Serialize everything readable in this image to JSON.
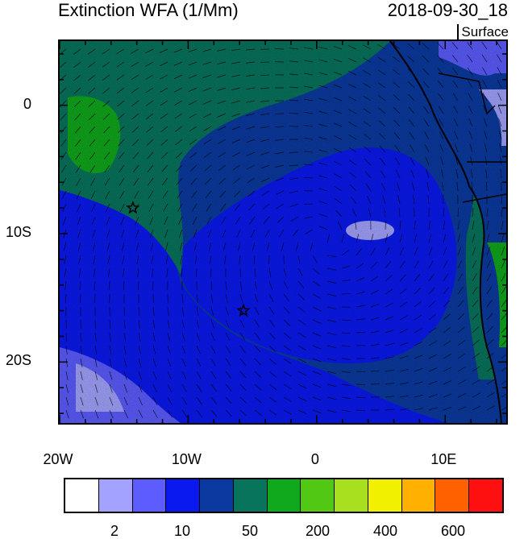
{
  "header": {
    "title": "Extinction WFA (1/Mm)",
    "datetime": "2018-09-30_18",
    "level": "Surface"
  },
  "map": {
    "lon_ticks": [
      "20W",
      "10W",
      "0",
      "10E"
    ],
    "lat_ticks": [
      "0",
      "10S",
      "20S"
    ],
    "extent": {
      "lon": [
        -20,
        15
      ],
      "lat": [
        -25,
        5
      ]
    },
    "markers": [
      {
        "name": "star-marker",
        "lon": -14.3,
        "lat": -8.0
      },
      {
        "name": "star-marker",
        "lon": -5.7,
        "lat": -16.0
      }
    ],
    "colors": {
      "water_mid": "#0a19f0",
      "coastline": "#000000"
    }
  },
  "colorbar": {
    "colors": [
      "#ffffff",
      "#a3a3ff",
      "#5c5cff",
      "#0a19f0",
      "#0a3aa0",
      "#08745c",
      "#10a81c",
      "#50c814",
      "#a8e020",
      "#f0f000",
      "#ffb000",
      "#ff6000",
      "#ff1010"
    ],
    "labels": [
      "2",
      "10",
      "50",
      "200",
      "400",
      "600"
    ]
  }
}
